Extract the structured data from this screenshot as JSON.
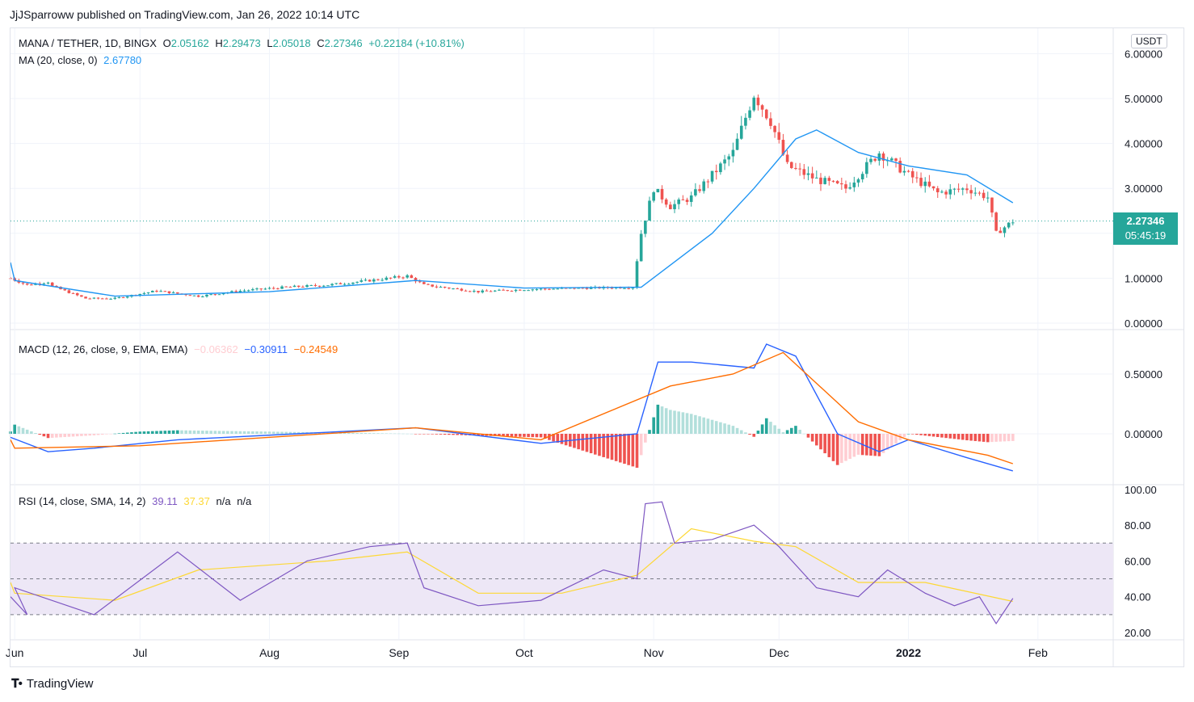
{
  "header": {
    "publisher": "JjJSparroww published on TradingView.com, Jan 26, 2022 10:14 UTC"
  },
  "currency_button": "USDT",
  "legend_main": {
    "symbol": "MANA / TETHER, 1D, BINGX",
    "o_label": "O",
    "o": "2.05162",
    "h_label": "H",
    "h": "2.29473",
    "l_label": "L",
    "l": "2.05018",
    "c_label": "C",
    "c": "2.27346",
    "change": "+0.22184 (+10.81%)",
    "ma_label": "MA (20, close, 0)",
    "ma_value": "2.67780"
  },
  "legend_macd": {
    "label": "MACD (12, 26, close, 9, EMA, EMA)",
    "hist": "−0.06362",
    "macd": "−0.30911",
    "signal": "−0.24549"
  },
  "legend_rsi": {
    "label": "RSI (14, close, SMA, 14, 2)",
    "rsi": "39.11",
    "sma": "37.37",
    "na1": "n/a",
    "na2": "n/a"
  },
  "price_tag": {
    "price": "2.27346",
    "countdown": "05:45:19"
  },
  "footer": {
    "brand": "TradingView"
  },
  "colors": {
    "up": "#26a69a",
    "down": "#ef5350",
    "ma": "#2196f3",
    "macd": "#2962ff",
    "signal": "#ff6d00",
    "rsi": "#7e57c2",
    "rsi_sma": "#fdd835",
    "rsi_band": "#ede7f6"
  },
  "chart_data": [
    {
      "type": "candlestick",
      "title": "MANA / TETHER, 1D, BINGX",
      "ylim": [
        0,
        6
      ],
      "y_ticks": [
        "6.00000",
        "5.00000",
        "4.00000",
        "3.00000",
        "2.00000",
        "1.00000",
        "0.00000"
      ],
      "x_ticks": [
        "Jun",
        "Jul",
        "Aug",
        "Sep",
        "Oct",
        "Nov",
        "Dec",
        "2022",
        "Feb"
      ],
      "last_price": 2.27346,
      "close_series": [
        {
          "x": "May 16",
          "y": 1.0
        },
        {
          "x": "May 20",
          "y": 0.85
        },
        {
          "x": "May 25",
          "y": 0.92
        },
        {
          "x": "Jun 1",
          "y": 0.88
        },
        {
          "x": "Jun 10",
          "y": 0.82
        },
        {
          "x": "Jun 18",
          "y": 0.55
        },
        {
          "x": "Jun 25",
          "y": 0.55
        },
        {
          "x": "Jul 5",
          "y": 0.72
        },
        {
          "x": "Jul 15",
          "y": 0.6
        },
        {
          "x": "Jul 25",
          "y": 0.72
        },
        {
          "x": "Aug 5",
          "y": 0.8
        },
        {
          "x": "Aug 15",
          "y": 0.85
        },
        {
          "x": "Aug 25",
          "y": 0.95
        },
        {
          "x": "Sep 3",
          "y": 1.05
        },
        {
          "x": "Sep 7",
          "y": 0.85
        },
        {
          "x": "Sep 20",
          "y": 0.7
        },
        {
          "x": "Oct 1",
          "y": 0.75
        },
        {
          "x": "Oct 15",
          "y": 0.78
        },
        {
          "x": "Oct 27",
          "y": 0.8
        },
        {
          "x": "Oct 29",
          "y": 2.0
        },
        {
          "x": "Nov 1",
          "y": 3.0
        },
        {
          "x": "Nov 5",
          "y": 2.6
        },
        {
          "x": "Nov 10",
          "y": 2.8
        },
        {
          "x": "Nov 15",
          "y": 3.3
        },
        {
          "x": "Nov 20",
          "y": 3.8
        },
        {
          "x": "Nov 25",
          "y": 5.1
        },
        {
          "x": "Nov 29",
          "y": 4.5
        },
        {
          "x": "Dec 3",
          "y": 3.5
        },
        {
          "x": "Dec 10",
          "y": 3.2
        },
        {
          "x": "Dec 17",
          "y": 3.0
        },
        {
          "x": "Dec 25",
          "y": 3.8
        },
        {
          "x": "Jan 1",
          "y": 3.3
        },
        {
          "x": "Jan 8",
          "y": 2.9
        },
        {
          "x": "Jan 15",
          "y": 3.0
        },
        {
          "x": "Jan 20",
          "y": 2.8
        },
        {
          "x": "Jan 22",
          "y": 2.0
        },
        {
          "x": "Jan 26",
          "y": 2.27
        }
      ],
      "ma_series": [
        {
          "x": "May 16",
          "y": 1.35
        },
        {
          "x": "Jun 1",
          "y": 0.95
        },
        {
          "x": "Jun 25",
          "y": 0.6
        },
        {
          "x": "Aug 1",
          "y": 0.7
        },
        {
          "x": "Sep 5",
          "y": 0.95
        },
        {
          "x": "Oct 1",
          "y": 0.78
        },
        {
          "x": "Oct 29",
          "y": 0.8
        },
        {
          "x": "Nov 15",
          "y": 2.0
        },
        {
          "x": "Nov 25",
          "y": 3.0
        },
        {
          "x": "Dec 5",
          "y": 4.1
        },
        {
          "x": "Dec 10",
          "y": 4.3
        },
        {
          "x": "Dec 20",
          "y": 3.8
        },
        {
          "x": "Jan 1",
          "y": 3.5
        },
        {
          "x": "Jan 15",
          "y": 3.3
        },
        {
          "x": "Jan 26",
          "y": 2.68
        }
      ]
    },
    {
      "type": "line",
      "title": "MACD (12, 26, close, 9, EMA, EMA)",
      "y_ticks": [
        "0.50000",
        "0.00000"
      ],
      "series": [
        {
          "name": "MACD",
          "values": [
            {
              "x": "May 16",
              "y": -0.03
            },
            {
              "x": "May 25",
              "y": -0.15
            },
            {
              "x": "Jun 20",
              "y": -0.12
            },
            {
              "x": "Jul 10",
              "y": -0.05
            },
            {
              "x": "Sep 5",
              "y": 0.05
            },
            {
              "x": "Oct 5",
              "y": -0.08
            },
            {
              "x": "Oct 28",
              "y": 0.0
            },
            {
              "x": "Nov 2",
              "y": 0.6
            },
            {
              "x": "Nov 10",
              "y": 0.6
            },
            {
              "x": "Nov 25",
              "y": 0.55
            },
            {
              "x": "Nov 28",
              "y": 0.75
            },
            {
              "x": "Dec 5",
              "y": 0.65
            },
            {
              "x": "Dec 15",
              "y": 0.0
            },
            {
              "x": "Dec 25",
              "y": -0.15
            },
            {
              "x": "Jan 1",
              "y": -0.05
            },
            {
              "x": "Jan 15",
              "y": -0.2
            },
            {
              "x": "Jan 26",
              "y": -0.31
            }
          ]
        },
        {
          "name": "Signal",
          "values": [
            {
              "x": "May 16",
              "y": -0.05
            },
            {
              "x": "Jun 1",
              "y": -0.12
            },
            {
              "x": "Jul 1",
              "y": -0.1
            },
            {
              "x": "Sep 5",
              "y": 0.05
            },
            {
              "x": "Oct 5",
              "y": -0.05
            },
            {
              "x": "Nov 5",
              "y": 0.4
            },
            {
              "x": "Nov 20",
              "y": 0.5
            },
            {
              "x": "Dec 2",
              "y": 0.68
            },
            {
              "x": "Dec 20",
              "y": 0.1
            },
            {
              "x": "Jan 1",
              "y": -0.05
            },
            {
              "x": "Jan 20",
              "y": -0.18
            },
            {
              "x": "Jan 26",
              "y": -0.25
            }
          ]
        }
      ]
    },
    {
      "type": "line",
      "title": "RSI (14, close, SMA, 14, 2)",
      "ylim": [
        20,
        100
      ],
      "y_ticks": [
        "100.00",
        "80.00",
        "60.00",
        "40.00",
        "20.00"
      ],
      "bands": [
        30,
        50,
        70
      ],
      "series": [
        {
          "name": "RSI",
          "values": [
            {
              "x": "May 16",
              "y": 40
            },
            {
              "x": "May 20",
              "y": 30
            },
            {
              "x": "Jun 1",
              "y": 45
            },
            {
              "x": "Jun 20",
              "y": 30
            },
            {
              "x": "Jul 10",
              "y": 65
            },
            {
              "x": "Jul 25",
              "y": 38
            },
            {
              "x": "Aug 10",
              "y": 60
            },
            {
              "x": "Aug 25",
              "y": 68
            },
            {
              "x": "Sep 3",
              "y": 70
            },
            {
              "x": "Sep 7",
              "y": 45
            },
            {
              "x": "Sep 20",
              "y": 35
            },
            {
              "x": "Oct 5",
              "y": 38
            },
            {
              "x": "Oct 20",
              "y": 55
            },
            {
              "x": "Oct 28",
              "y": 50
            },
            {
              "x": "Oct 30",
              "y": 92
            },
            {
              "x": "Nov 3",
              "y": 93
            },
            {
              "x": "Nov 6",
              "y": 70
            },
            {
              "x": "Nov 15",
              "y": 72
            },
            {
              "x": "Nov 25",
              "y": 80
            },
            {
              "x": "Dec 1",
              "y": 68
            },
            {
              "x": "Dec 10",
              "y": 45
            },
            {
              "x": "Dec 20",
              "y": 40
            },
            {
              "x": "Dec 27",
              "y": 55
            },
            {
              "x": "Jan 5",
              "y": 42
            },
            {
              "x": "Jan 12",
              "y": 35
            },
            {
              "x": "Jan 18",
              "y": 40
            },
            {
              "x": "Jan 22",
              "y": 25
            },
            {
              "x": "Jan 26",
              "y": 39.11
            }
          ]
        },
        {
          "name": "SMA",
          "values": [
            {
              "x": "May 16",
              "y": 48
            },
            {
              "x": "Jun 1",
              "y": 42
            },
            {
              "x": "Jun 25",
              "y": 38
            },
            {
              "x": "Jul 15",
              "y": 55
            },
            {
              "x": "Aug 15",
              "y": 60
            },
            {
              "x": "Sep 3",
              "y": 65
            },
            {
              "x": "Sep 20",
              "y": 42
            },
            {
              "x": "Oct 10",
              "y": 42
            },
            {
              "x": "Oct 28",
              "y": 52
            },
            {
              "x": "Nov 10",
              "y": 78
            },
            {
              "x": "Nov 25",
              "y": 71
            },
            {
              "x": "Dec 5",
              "y": 68
            },
            {
              "x": "Dec 20",
              "y": 48
            },
            {
              "x": "Jan 5",
              "y": 48
            },
            {
              "x": "Jan 26",
              "y": 37.37
            }
          ]
        }
      ]
    }
  ]
}
